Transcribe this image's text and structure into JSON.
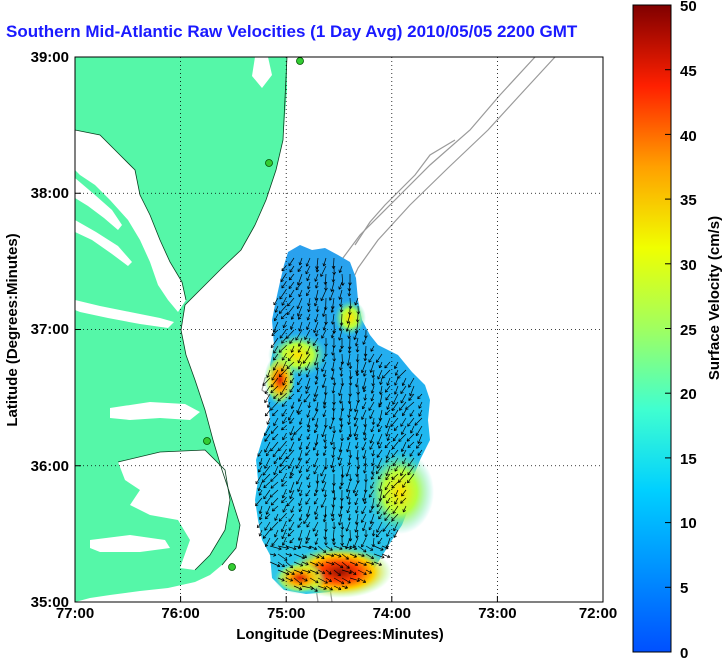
{
  "title": "Southern Mid-Atlantic Raw Velocities (1 Day Avg) 2010/05/05 2200 GMT",
  "map": {
    "xlabel": "Longitude (Degrees:Minutes)",
    "ylabel": "Latitude (Degrees:Minutes)",
    "lon_ticks": [
      "77:00",
      "76:00",
      "75:00",
      "74:00",
      "73:00",
      "72:00"
    ],
    "lat_ticks": [
      "39:00",
      "38:00",
      "37:00",
      "36:00",
      "35:00"
    ],
    "grid": "dotted"
  },
  "colorbar": {
    "label": "Surface Velocity (cm/s)",
    "ticks": [
      "50",
      "45",
      "40",
      "35",
      "30",
      "25",
      "20",
      "15",
      "10",
      "5",
      "0"
    ],
    "range": [
      0,
      50
    ],
    "colormap": "jet"
  },
  "colors": {
    "land": "#55f7a8",
    "title": "#1a1aff",
    "bathymetry": "#9a9a9a",
    "station": "#33cc33"
  }
}
